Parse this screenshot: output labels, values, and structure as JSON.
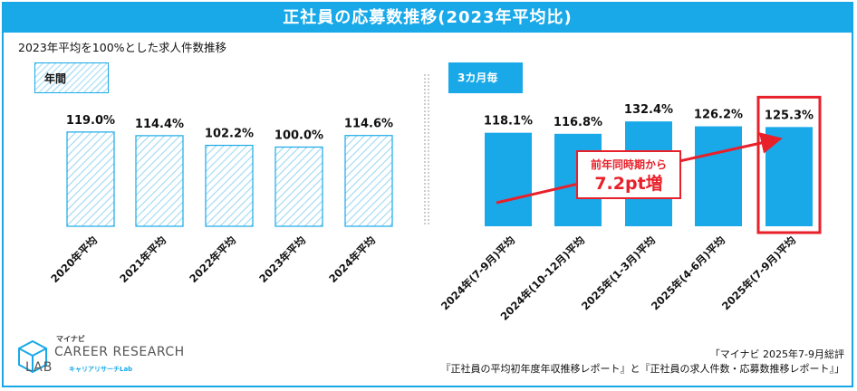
{
  "header": {
    "title": "正社員の応募数推移(2023年平均比)",
    "subtitle": "2023年平均を100%とした求人件数推移"
  },
  "badges": {
    "annual": "年間",
    "quarterly": "3カ月毎"
  },
  "callout": {
    "line1": "前年同時期から",
    "line2": "7.2pt増"
  },
  "logo": {
    "top": "マイナビ",
    "main": "CAREER RESEARCH",
    "lab": "LAB",
    "sub": "キャリアリサーチLab"
  },
  "source": {
    "line1": "「マイナビ 2025年7-9月総評",
    "line2": "『正社員の平均初年度年収推移レポート』と『正社員の求人件数・応募数推移レポート』」"
  },
  "colors": {
    "accent": "#19a9e8",
    "highlight": "#e8202a",
    "hatch": "#9fd8f2"
  },
  "chart_data": {
    "type": "bar",
    "title": "2023年平均を100%とした求人件数推移",
    "unit": "%",
    "annual": {
      "label": "年間",
      "categories": [
        "2020年平均",
        "2021年平均",
        "2022年平均",
        "2023年平均",
        "2024年平均"
      ],
      "values": [
        119.0,
        114.4,
        102.2,
        100.0,
        114.6
      ],
      "labels": [
        "119.0%",
        "114.4%",
        "102.2%",
        "100.0%",
        "114.6%"
      ]
    },
    "quarterly": {
      "label": "3カ月毎",
      "categories": [
        "2024年(7-9月)平均",
        "2024年(10-12月)平均",
        "2025年(1-3月)平均",
        "2025年(4-6月)平均",
        "2025年(7-9月)平均"
      ],
      "values": [
        118.1,
        116.8,
        132.4,
        126.2,
        125.3
      ],
      "labels": [
        "118.1%",
        "116.8%",
        "132.4%",
        "126.2%",
        "125.3%"
      ],
      "highlight_index": 4
    }
  }
}
